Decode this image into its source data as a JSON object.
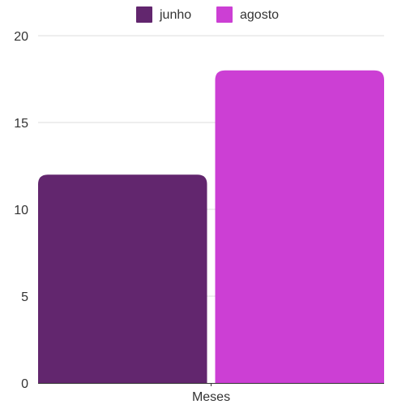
{
  "chart_data": {
    "type": "bar",
    "categories": [
      "Meses"
    ],
    "series": [
      {
        "name": "junho",
        "values": [
          12
        ],
        "color": "#62266e"
      },
      {
        "name": "agosto",
        "values": [
          18
        ],
        "color": "#cc3fd4"
      }
    ],
    "xlabel": "",
    "ylabel": "",
    "ylim": [
      0,
      20
    ],
    "yticks": [
      "0",
      "5",
      "10",
      "15",
      "20"
    ],
    "grid": true,
    "legend_position": "top-center"
  }
}
